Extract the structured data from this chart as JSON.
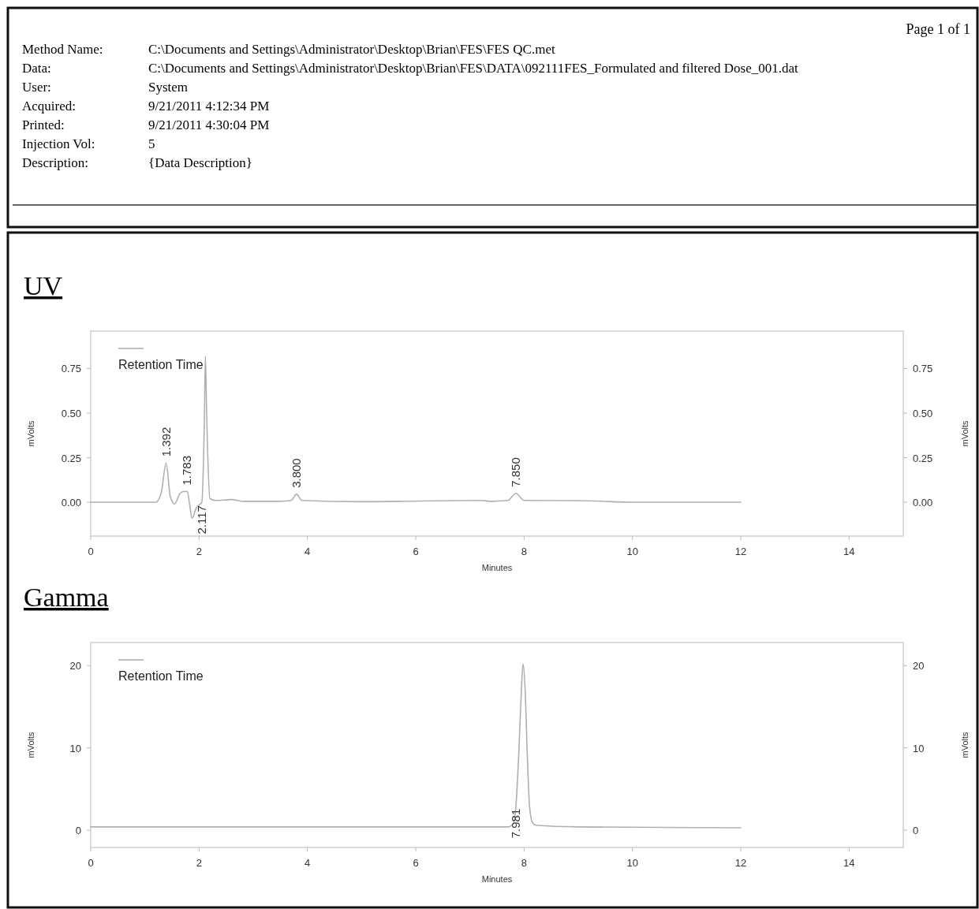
{
  "chart_data": [
    {
      "type": "other",
      "annotations": [
        "Page 1 of 1",
        "Method Name:",
        "C:\\Documents and Settings\\Administrator\\Desktop\\Brian\\FES\\FES QC.met",
        "Data:",
        "C:\\Documents and Settings\\Administrator\\Desktop\\Brian\\FES\\DATA\\092111FES_Formulated and filtered Dose_001.dat",
        "User:",
        "System",
        "Acquired:",
        "9/21/2011 4:12:34 PM",
        "Printed:",
        "9/21/2011 4:30:04 PM",
        "Injection Vol:",
        "5",
        "Description:",
        "{Data Description}"
      ]
    },
    {
      "type": "line",
      "title": "UV",
      "xlabel": "Minutes",
      "ylabel": "mVolts",
      "y2label": "mVolts",
      "xlim": [
        0,
        15
      ],
      "xticks": [
        0,
        2,
        4,
        6,
        8,
        10,
        12,
        14
      ],
      "ylim": [
        -0.19,
        0.96
      ],
      "yticks": [
        {
          "value": 0,
          "label": "0.00"
        },
        0.25,
        {
          "value": 0.5,
          "label": "0.50"
        },
        0.75
      ],
      "y2lim": [
        -0.19,
        0.96
      ],
      "y2ticks": [
        {
          "value": 0,
          "label": "0.00"
        },
        0.25,
        {
          "value": 0.5,
          "label": "0.50"
        },
        0.75
      ],
      "legend": "top left",
      "grid": false,
      "series": [
        {
          "name": "Retention Time",
          "color": "#b0b0b0",
          "x": [
            0,
            1.2,
            1.3,
            1.392,
            1.47,
            1.55,
            1.65,
            1.72,
            1.783,
            1.82,
            1.87,
            1.95,
            2.05,
            2.1,
            2.117,
            2.14,
            2.2,
            2.3,
            2.6,
            2.8,
            3.5,
            3.7,
            3.8,
            3.9,
            5,
            7.2,
            7.4,
            7.7,
            7.85,
            8,
            9.2,
            10,
            12
          ],
          "values": [
            0,
            0,
            0.05,
            0.22,
            0.03,
            -0.01,
            0.05,
            0.06,
            0.06,
            0.0,
            -0.09,
            -0.03,
            0.0,
            0.5,
            0.82,
            0.5,
            0.02,
            0.01,
            0.015,
            0.005,
            0.005,
            0.01,
            0.045,
            0.01,
            0.003,
            0.01,
            0.005,
            0.01,
            0.05,
            0.01,
            0.008,
            0.0,
            0.0
          ]
        }
      ],
      "annotations": [
        {
          "text": "1.392",
          "x": 1.392,
          "y": 0.22
        },
        {
          "text": "1.783",
          "x": 1.783,
          "y": 0.06
        },
        {
          "text": "2.117",
          "x": 2.05,
          "y": 0.0
        },
        {
          "text": "3.800",
          "x": 3.8,
          "y": 0.045
        },
        {
          "text": "7.850",
          "x": 7.85,
          "y": 0.05
        }
      ]
    },
    {
      "type": "line",
      "title": "Gamma",
      "xlabel": "Minutes",
      "ylabel": "mVolts",
      "y2label": "mVolts",
      "xlim": [
        0,
        15
      ],
      "xticks": [
        0,
        2,
        4,
        6,
        8,
        10,
        12,
        14
      ],
      "ylim": [
        -2.1,
        22.8
      ],
      "yticks": [
        0,
        10,
        20
      ],
      "y2lim": [
        -2.1,
        22.8
      ],
      "y2ticks": [
        0,
        10,
        20
      ],
      "legend": "top left",
      "grid": false,
      "series": [
        {
          "name": "Retention Time",
          "color": "#b0b0b0",
          "x": [
            0,
            4,
            7.7,
            7.8,
            7.85,
            7.9,
            7.95,
            7.981,
            8.02,
            8.06,
            8.1,
            8.15,
            8.22,
            9,
            12
          ],
          "values": [
            0.4,
            0.4,
            0.4,
            0.8,
            3,
            9,
            17,
            20.2,
            17,
            9,
            3,
            1,
            0.6,
            0.4,
            0.3
          ]
        }
      ],
      "annotations": [
        {
          "text": "7.981",
          "x": 7.85,
          "y": 3
        }
      ]
    }
  ]
}
